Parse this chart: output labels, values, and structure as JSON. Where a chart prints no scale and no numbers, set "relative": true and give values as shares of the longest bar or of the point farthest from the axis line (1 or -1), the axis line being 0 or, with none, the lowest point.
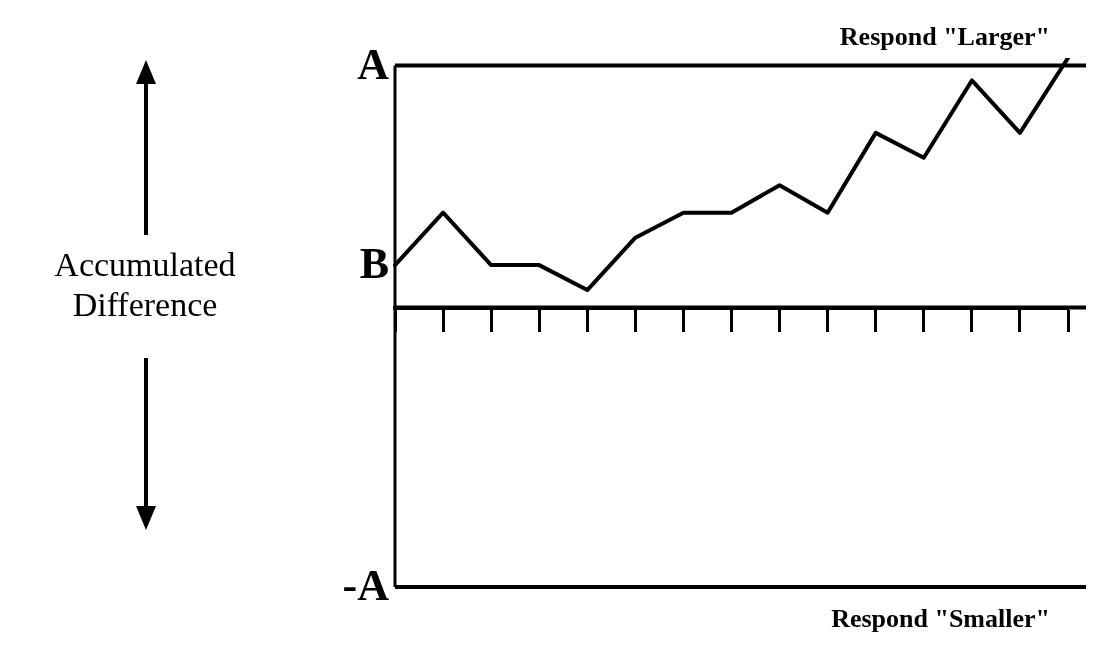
{
  "chart_data": {
    "type": "line",
    "relative": true,
    "marker": "none",
    "line_style": "solid",
    "color": "#000000",
    "ylabel": "Accumulated Difference",
    "categories": [
      null,
      null,
      null,
      null,
      null,
      null,
      null,
      null,
      null,
      null,
      null,
      null,
      null,
      null,
      null
    ],
    "values": [
      0.17,
      0.38,
      0.17,
      0.17,
      0.07,
      0.28,
      0.38,
      0.38,
      0.49,
      0.38,
      0.7,
      0.6,
      0.91,
      0.7,
      1.0
    ],
    "ref_lines": [
      {
        "axis": "y",
        "value": 0.97,
        "label": "A"
      },
      {
        "axis": "y",
        "value": -1.12,
        "label": "-A"
      }
    ],
    "annotations": [
      "B",
      {
        "text": "Respond \"Larger\"",
        "y": 0.97
      },
      {
        "text": "Respond \"Smaller\"",
        "y": -1.12
      }
    ]
  }
}
